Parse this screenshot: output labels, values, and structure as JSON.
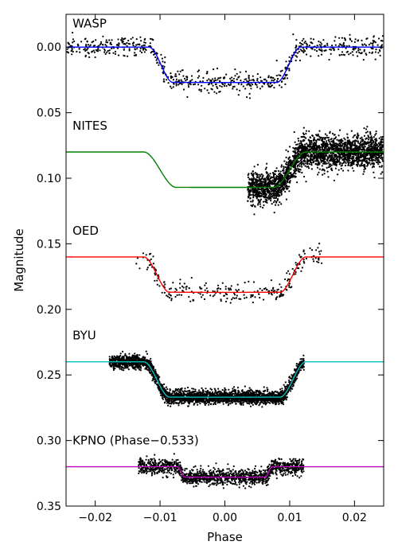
{
  "chart_data": {
    "type": "scatter",
    "xlabel": "Phase",
    "ylabel": "Magnitude",
    "xlim": [
      -0.0245,
      0.0245
    ],
    "ylim": [
      0.35,
      -0.025
    ],
    "y_inverted": true,
    "grid": false,
    "x_ticks": [
      {
        "value": -0.02,
        "label": "−0.02"
      },
      {
        "value": -0.01,
        "label": "−0.01"
      },
      {
        "value": 0.0,
        "label": "0.00"
      },
      {
        "value": 0.01,
        "label": "0.01"
      },
      {
        "value": 0.02,
        "label": "0.02"
      }
    ],
    "y_ticks": [
      {
        "value": 0.0,
        "label": "0.00"
      },
      {
        "value": 0.05,
        "label": "0.05"
      },
      {
        "value": 0.1,
        "label": "0.10"
      },
      {
        "value": 0.15,
        "label": "0.15"
      },
      {
        "value": 0.2,
        "label": "0.20"
      },
      {
        "value": 0.25,
        "label": "0.25"
      },
      {
        "value": 0.3,
        "label": "0.30"
      },
      {
        "value": 0.35,
        "label": "0.35"
      }
    ],
    "series": [
      {
        "name": "WASP",
        "color": "#0000ff",
        "baseline": 0.0,
        "depth": 0.027,
        "ingress_start": 0.0117,
        "flat_start": 0.008,
        "model_x_range": [
          -0.0245,
          0.0245
        ],
        "obs_x_range": [
          -0.0245,
          0.0245
        ],
        "scatter": 0.004,
        "point_count": 700,
        "label_pos": [
          -0.0235,
          -0.015
        ]
      },
      {
        "name": "NITES",
        "color": "#008000",
        "baseline": 0.08,
        "depth": 0.027,
        "ingress_start": 0.0125,
        "flat_start": 0.0075,
        "model_x_range": [
          -0.0245,
          0.0245
        ],
        "obs_x_range": [
          0.0035,
          0.0245
        ],
        "scatter": 0.006,
        "point_count": 2600,
        "label_pos": [
          -0.0235,
          0.063
        ]
      },
      {
        "name": "OED",
        "color": "#ff0000",
        "baseline": 0.16,
        "depth": 0.027,
        "ingress_start": 0.0125,
        "flat_start": 0.0085,
        "model_x_range": [
          -0.0245,
          0.0245
        ],
        "obs_x_range": [
          -0.0138,
          0.0152
        ],
        "scatter": 0.004,
        "point_count": 260,
        "label_pos": [
          -0.0235,
          0.143
        ]
      },
      {
        "name": "BYU",
        "color": "#00bfbf",
        "baseline": 0.24,
        "depth": 0.027,
        "ingress_start": 0.0125,
        "flat_start": 0.0085,
        "model_x_range": [
          -0.0245,
          0.0245
        ],
        "obs_x_range": [
          -0.0178,
          0.0122
        ],
        "scatter": 0.0025,
        "point_count": 3000,
        "label_pos": [
          -0.0235,
          0.223
        ]
      },
      {
        "name": "KPNO (Phase−0.533)",
        "color": "#bf00bf",
        "baseline": 0.32,
        "depth": 0.008,
        "ingress_start": 0.0073,
        "flat_start": 0.0062,
        "model_x_range": [
          -0.0245,
          0.0245
        ],
        "obs_x_range": [
          -0.0133,
          0.0122
        ],
        "scatter": 0.003,
        "point_count": 1400,
        "label_pos": [
          -0.0235,
          0.303
        ]
      }
    ]
  }
}
